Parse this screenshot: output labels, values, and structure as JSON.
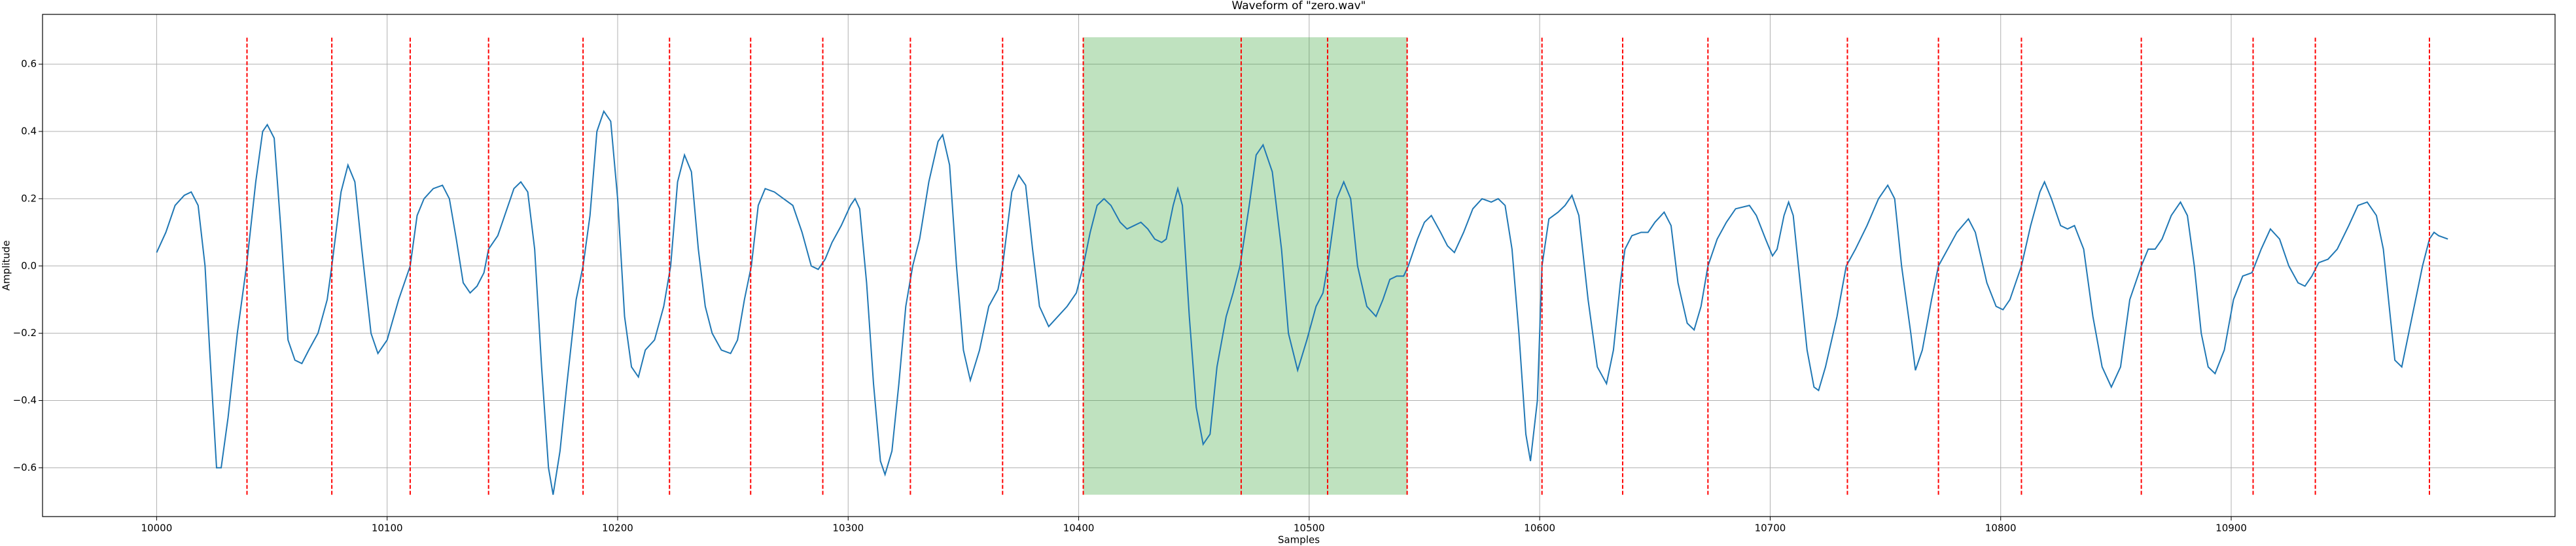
{
  "chart_data": {
    "type": "line",
    "title": "Waveform of \"zero.wav\"",
    "xlabel": "Samples",
    "ylabel": "Amplitude",
    "xlim": [
      9950.5,
      11040.5
    ],
    "ylim": [
      -0.745,
      0.748
    ],
    "xticks": [
      10000,
      10100,
      10200,
      10300,
      10400,
      10500,
      10600,
      10700,
      10800,
      10900
    ],
    "yticks": [
      {
        "value": -0.6,
        "label": "−0.6"
      },
      {
        "value": -0.4,
        "label": "−0.4"
      },
      {
        "value": -0.2,
        "label": "−0.2"
      },
      {
        "value": 0,
        "label": "0.0"
      },
      0.2,
      0.4,
      0.6
    ],
    "grid": true,
    "x": [
      10000,
      10004,
      10008,
      10012,
      10015,
      10018,
      10021,
      10023,
      10026,
      10028,
      10031,
      10035,
      10039,
      10043,
      10046,
      10048,
      10051,
      10054,
      10057,
      10060,
      10063,
      10066,
      10070,
      10074,
      10076,
      10080,
      10083,
      10086,
      10089,
      10093,
      10096,
      10100,
      10105,
      10110,
      10113,
      10116,
      10120,
      10124,
      10127,
      10130,
      10133,
      10136,
      10139,
      10142,
      10144,
      10148,
      10151,
      10155,
      10158,
      10161,
      10164,
      10167,
      10170,
      10172,
      10175,
      10178,
      10182,
      10185,
      10188,
      10191,
      10194,
      10197,
      10200,
      10203,
      10206,
      10209,
      10212,
      10216,
      10220,
      10223,
      10226,
      10229,
      10232,
      10235,
      10238,
      10241,
      10245,
      10249,
      10252,
      10255,
      10258,
      10261,
      10264,
      10268,
      10272,
      10276,
      10280,
      10284,
      10287,
      10290,
      10293,
      10297,
      10301,
      10303,
      10305,
      10308,
      10311,
      10314,
      10316,
      10319,
      10322,
      10325,
      10328,
      10331,
      10335,
      10339,
      10341,
      10344,
      10347,
      10350,
      10353,
      10357,
      10361,
      10365,
      10367,
      10371,
      10374,
      10377,
      10380,
      10383,
      10387,
      10391,
      10395,
      10399,
      10402,
      10405,
      10408,
      10411,
      10414,
      10418,
      10421,
      10424,
      10427,
      10430,
      10433,
      10436,
      10438,
      10441,
      10443,
      10445,
      10448,
      10451,
      10454,
      10457,
      10460,
      10464,
      10467,
      10470,
      10474,
      10477,
      10480,
      10484,
      10488,
      10491,
      10495,
      10499,
      10503,
      10506,
      10508,
      10512,
      10515,
      10518,
      10521,
      10525,
      10529,
      10532,
      10535,
      10538,
      10541,
      10543,
      10547,
      10550,
      10553,
      10557,
      10560,
      10563,
      10567,
      10571,
      10575,
      10579,
      10582,
      10585,
      10588,
      10591,
      10594,
      10596,
      10599,
      10601,
      10604,
      10608,
      10611,
      10614,
      10617,
      10621,
      10625,
      10629,
      10632,
      10635,
      10637,
      10640,
      10644,
      10647,
      10650,
      10654,
      10657,
      10660,
      10664,
      10667,
      10670,
      10673,
      10677,
      10681,
      10685,
      10691,
      10694,
      10698,
      10701,
      10703,
      10706,
      10708,
      10710,
      10713,
      10716,
      10719,
      10721,
      10724,
      10729,
      10733,
      10737,
      10742,
      10747,
      10751,
      10754,
      10757,
      10761,
      10763,
      10766,
      10770,
      10773,
      10777,
      10781,
      10786,
      10789,
      10794,
      10798,
      10801,
      10804,
      10809,
      10813,
      10817,
      10819,
      10822,
      10826,
      10829,
      10832,
      10836,
      10840,
      10844,
      10848,
      10852,
      10856,
      10861,
      10864,
      10867,
      10870,
      10874,
      10878,
      10881,
      10884,
      10887,
      10890,
      10893,
      10897,
      10901,
      10905,
      10909,
      10913,
      10917,
      10921,
      10925,
      10929,
      10932,
      10935,
      10938,
      10942,
      10946,
      10951,
      10955,
      10959,
      10963,
      10966,
      10969,
      10971,
      10974,
      10977,
      10983,
      10986,
      10988,
      10990,
      10994
    ],
    "series": [
      {
        "color": "#1f77b4",
        "values": [
          0.04,
          0.1,
          0.18,
          0.21,
          0.22,
          0.18,
          0.0,
          -0.25,
          -0.6,
          -0.6,
          -0.45,
          -0.2,
          0.0,
          0.25,
          0.4,
          0.42,
          0.38,
          0.1,
          -0.22,
          -0.28,
          -0.29,
          -0.25,
          -0.2,
          -0.1,
          0.0,
          0.22,
          0.3,
          0.25,
          0.05,
          -0.2,
          -0.26,
          -0.22,
          -0.1,
          0.0,
          0.15,
          0.2,
          0.23,
          0.24,
          0.2,
          0.08,
          -0.05,
          -0.08,
          -0.06,
          -0.02,
          0.05,
          0.09,
          0.15,
          0.23,
          0.25,
          0.22,
          0.05,
          -0.3,
          -0.6,
          -0.68,
          -0.55,
          -0.35,
          -0.1,
          0.0,
          0.15,
          0.4,
          0.46,
          0.43,
          0.2,
          -0.15,
          -0.3,
          -0.33,
          -0.25,
          -0.22,
          -0.12,
          0.0,
          0.25,
          0.33,
          0.28,
          0.05,
          -0.12,
          -0.2,
          -0.25,
          -0.26,
          -0.22,
          -0.1,
          0.0,
          0.18,
          0.23,
          0.22,
          0.2,
          0.18,
          0.1,
          0.0,
          -0.01,
          0.02,
          0.07,
          0.12,
          0.18,
          0.2,
          0.17,
          -0.05,
          -0.35,
          -0.58,
          -0.62,
          -0.55,
          -0.35,
          -0.12,
          0.0,
          0.08,
          0.25,
          0.37,
          0.39,
          0.3,
          0.0,
          -0.25,
          -0.34,
          -0.25,
          -0.12,
          -0.07,
          0.0,
          0.22,
          0.27,
          0.24,
          0.05,
          -0.12,
          -0.18,
          -0.15,
          -0.12,
          -0.08,
          0.0,
          0.1,
          0.18,
          0.2,
          0.18,
          0.13,
          0.11,
          0.12,
          0.13,
          0.11,
          0.08,
          0.07,
          0.08,
          0.18,
          0.23,
          0.18,
          -0.15,
          -0.42,
          -0.53,
          -0.5,
          -0.3,
          -0.15,
          -0.08,
          0.0,
          0.18,
          0.33,
          0.36,
          0.28,
          0.05,
          -0.2,
          -0.31,
          -0.22,
          -0.12,
          -0.08,
          0.0,
          0.2,
          0.25,
          0.2,
          0.0,
          -0.12,
          -0.15,
          -0.1,
          -0.04,
          -0.03,
          -0.03,
          0.0,
          0.08,
          0.13,
          0.15,
          0.1,
          0.06,
          0.04,
          0.1,
          0.17,
          0.2,
          0.19,
          0.2,
          0.18,
          0.05,
          -0.2,
          -0.5,
          -0.58,
          -0.4,
          0.0,
          0.14,
          0.16,
          0.18,
          0.21,
          0.15,
          -0.1,
          -0.3,
          -0.35,
          -0.25,
          -0.05,
          0.05,
          0.09,
          0.1,
          0.1,
          0.13,
          0.16,
          0.12,
          -0.05,
          -0.17,
          -0.19,
          -0.12,
          0.0,
          0.08,
          0.13,
          0.17,
          0.18,
          0.15,
          0.08,
          0.03,
          0.05,
          0.15,
          0.19,
          0.15,
          -0.05,
          -0.25,
          -0.36,
          -0.37,
          -0.3,
          -0.15,
          0.0,
          0.05,
          0.12,
          0.2,
          0.24,
          0.2,
          0.0,
          -0.2,
          -0.31,
          -0.25,
          -0.1,
          0.0,
          0.05,
          0.1,
          0.14,
          0.1,
          -0.05,
          -0.12,
          -0.13,
          -0.1,
          0.0,
          0.12,
          0.22,
          0.25,
          0.2,
          0.12,
          0.11,
          0.12,
          0.05,
          -0.15,
          -0.3,
          -0.36,
          -0.3,
          -0.1,
          0.0,
          0.05,
          0.05,
          0.08,
          0.15,
          0.19,
          0.15,
          0.0,
          -0.2,
          -0.3,
          -0.32,
          -0.25,
          -0.1,
          -0.03,
          -0.02,
          0.05,
          0.11,
          0.08,
          0.0,
          -0.05,
          -0.06,
          -0.03,
          0.01,
          0.02,
          0.05,
          0.12,
          0.18,
          0.19,
          0.15,
          0.05,
          -0.15,
          -0.28,
          -0.3,
          -0.2,
          0.0,
          0.08,
          0.1,
          0.09,
          0.08
        ]
      }
    ],
    "vlines": {
      "color": "red",
      "ymin": -0.68,
      "ymax": 0.68,
      "x": [
        10039.2,
        10076,
        10110,
        10144,
        10185,
        10222.5,
        10257.7,
        10289,
        10327,
        10367,
        10402,
        10470.5,
        10508,
        10542.5,
        10601,
        10636,
        10673,
        10733.5,
        10773,
        10809,
        10861,
        10909.5,
        10936.5,
        10986
      ]
    },
    "span": {
      "color": "#2ca02c",
      "x": [
        10402,
        10542.5
      ],
      "ymin": -0.68,
      "ymax": 0.68
    }
  }
}
